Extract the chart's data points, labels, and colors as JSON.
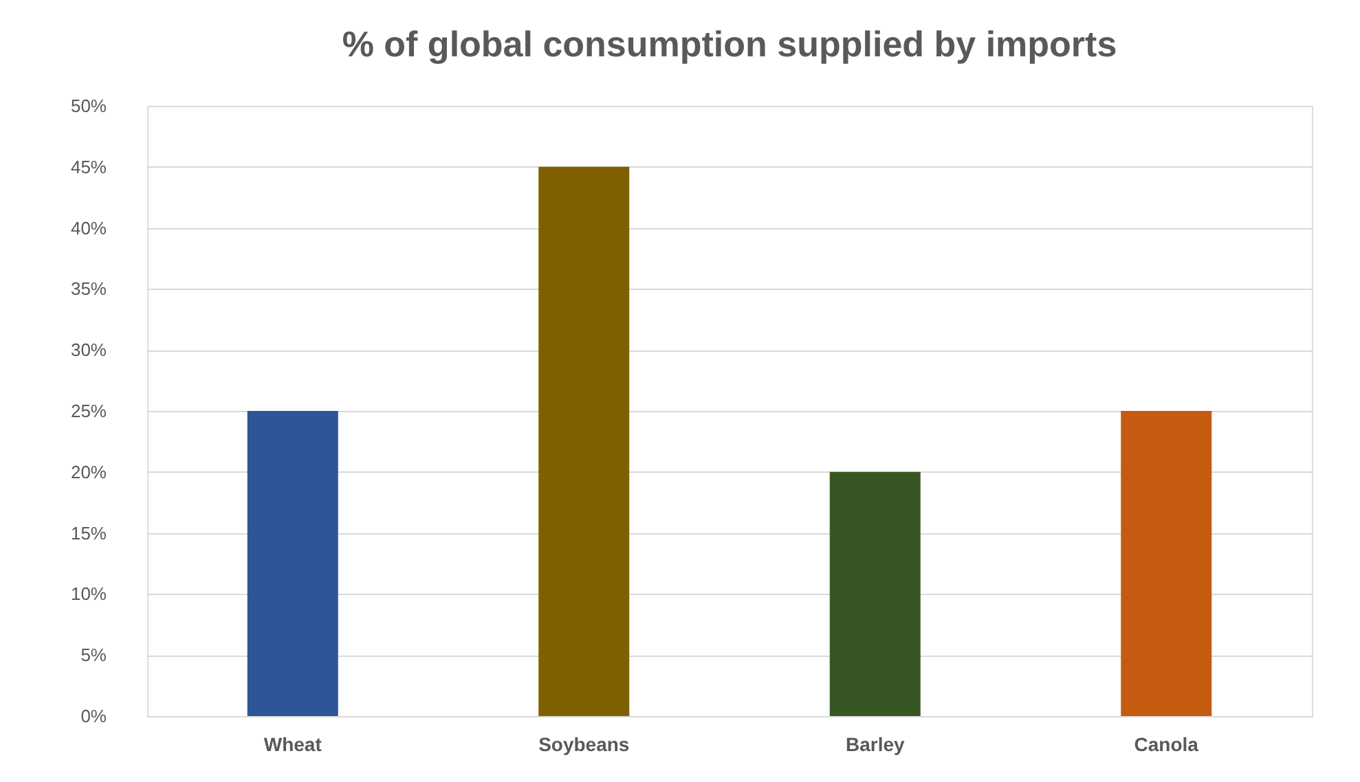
{
  "chart_data": {
    "type": "bar",
    "title": "% of global  consumption supplied by imports",
    "categories": [
      "Wheat",
      "Soybeans",
      "Barley",
      "Canola"
    ],
    "values": [
      25,
      45,
      20,
      25
    ],
    "colors": [
      "#2e5597",
      "#7f6000",
      "#375623",
      "#c55a11"
    ],
    "ylim": [
      0,
      50
    ],
    "yticks": [
      {
        "value": 0,
        "label": "0%"
      },
      {
        "value": 5,
        "label": "5%"
      },
      {
        "value": 10,
        "label": "10%"
      },
      {
        "value": 15,
        "label": "15%"
      },
      {
        "value": 20,
        "label": "20%"
      },
      {
        "value": 25,
        "label": "25%"
      },
      {
        "value": 30,
        "label": "30%"
      },
      {
        "value": 35,
        "label": "35%"
      },
      {
        "value": 40,
        "label": "40%"
      },
      {
        "value": 45,
        "label": "45%"
      },
      {
        "value": 50,
        "label": "50%"
      }
    ],
    "grid": "y"
  }
}
